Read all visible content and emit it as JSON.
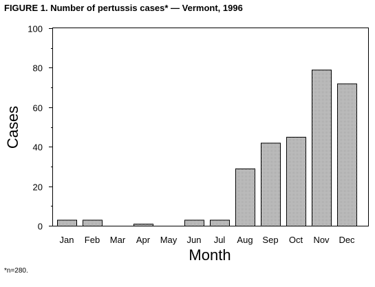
{
  "figure": {
    "title_label": "FIGURE 1.",
    "title_text": "Number of pertussis cases* — Vermont, 1996",
    "footnote_mark": "*",
    "footnote_text": "n=280."
  },
  "chart_data": {
    "type": "bar",
    "title": "Number of pertussis cases* — Vermont, 1996",
    "xlabel": "Month",
    "ylabel": "Cases",
    "categories": [
      "Jan",
      "Feb",
      "Mar",
      "Apr",
      "May",
      "Jun",
      "Jul",
      "Aug",
      "Sep",
      "Oct",
      "Nov",
      "Dec"
    ],
    "values": [
      3,
      3,
      0,
      1,
      0,
      3,
      3,
      29,
      42,
      45,
      79,
      72
    ],
    "ylim": [
      0,
      100
    ],
    "yticks": [
      0,
      20,
      40,
      60,
      80,
      100
    ],
    "yminor_step": 10,
    "grid": false,
    "legend": "none",
    "bar_fill": "#9a9a9a",
    "bar_pattern": "stippled"
  }
}
